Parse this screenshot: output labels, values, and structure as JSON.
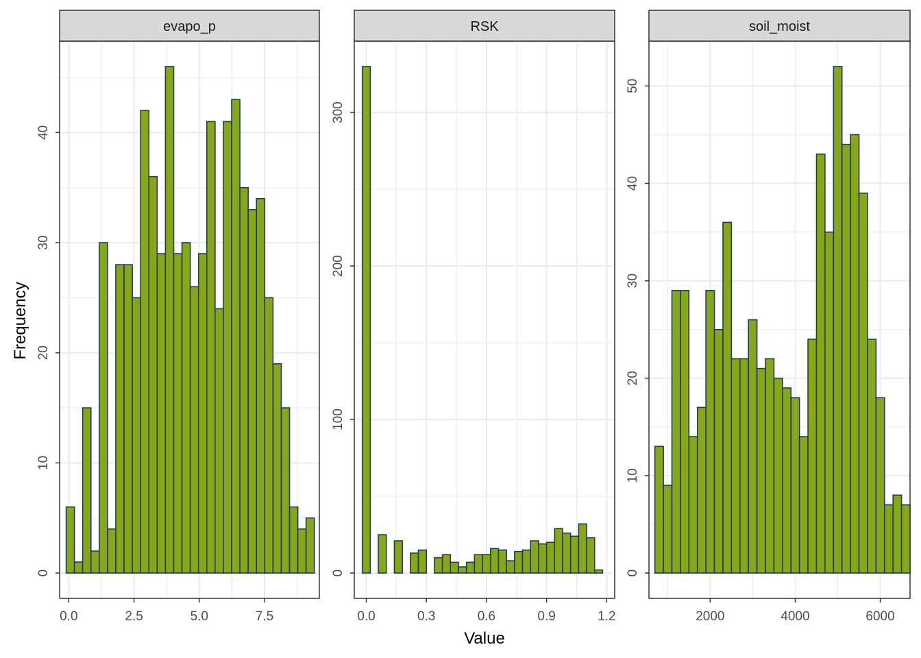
{
  "chart_data": {
    "type": "bar",
    "layout": "faceted-histogram",
    "xlabel": "Value",
    "ylabel": "Frequency",
    "colors": {
      "fill": "#86A71A",
      "stroke": "#1F3A5F",
      "grid": "#EBEBEB",
      "strip_bg": "#D9D9D9",
      "panel_border": "#333333"
    },
    "grid": true,
    "legend": "none",
    "panels": [
      {
        "title": "evapo_p",
        "xlim": [
          -0.35,
          9.6
        ],
        "ylim": [
          -2.3,
          48.3
        ],
        "xticks": [
          0,
          2.5,
          5,
          7.5
        ],
        "xtick_labels": [
          "0.0",
          "2.5",
          "5.0",
          "7.5"
        ],
        "yticks": [
          0,
          10,
          20,
          30,
          40
        ],
        "yminor": [
          5,
          15,
          25,
          35,
          45
        ],
        "xminor": [
          1.25,
          3.75,
          6.25,
          8.75
        ],
        "bar_start": -0.1,
        "bar_width": 0.317,
        "values": [
          6,
          1,
          15,
          2,
          30,
          4,
          28,
          28,
          25,
          42,
          36,
          29,
          46,
          29,
          30,
          26,
          29,
          41,
          24,
          41,
          43,
          35,
          33,
          34,
          25,
          19,
          15,
          6,
          4,
          5
        ]
      },
      {
        "title": "RSK",
        "xlim": [
          -0.06,
          1.24
        ],
        "ylim": [
          -16.5,
          346.5
        ],
        "xticks": [
          0,
          0.3,
          0.6,
          0.9,
          1.2
        ],
        "xtick_labels": [
          "0.0",
          "0.3",
          "0.6",
          "0.9",
          "1.2"
        ],
        "yticks": [
          0,
          100,
          200,
          300
        ],
        "yminor": [
          50,
          150,
          250
        ],
        "xminor": [
          0.15,
          0.45,
          0.75,
          1.05
        ],
        "bar_start": -0.02,
        "bar_width": 0.04,
        "values": [
          330,
          0,
          25,
          0,
          21,
          0,
          13,
          15,
          0,
          10,
          12,
          7,
          4,
          7,
          12,
          12,
          16,
          15,
          8,
          14,
          15,
          21,
          19,
          20,
          29,
          26,
          24,
          32,
          23,
          2
        ]
      },
      {
        "title": "soil_moist",
        "xlim": [
          560,
          6700
        ],
        "ylim": [
          -2.6,
          54.6
        ],
        "xticks": [
          2000,
          4000,
          6000
        ],
        "xtick_labels": [
          "2000",
          "4000",
          "6000"
        ],
        "yticks": [
          0,
          10,
          20,
          30,
          40,
          50
        ],
        "yminor": [
          5,
          15,
          25,
          35,
          45
        ],
        "xminor": [
          1000,
          3000,
          5000
        ],
        "bar_start": 700,
        "bar_width": 200,
        "values": [
          13,
          9,
          29,
          29,
          14,
          17,
          29,
          25,
          36,
          22,
          22,
          26,
          21,
          22,
          20,
          19,
          18,
          14,
          24,
          43,
          35,
          52,
          44,
          45,
          39,
          24,
          18,
          7,
          8,
          7
        ]
      }
    ]
  }
}
